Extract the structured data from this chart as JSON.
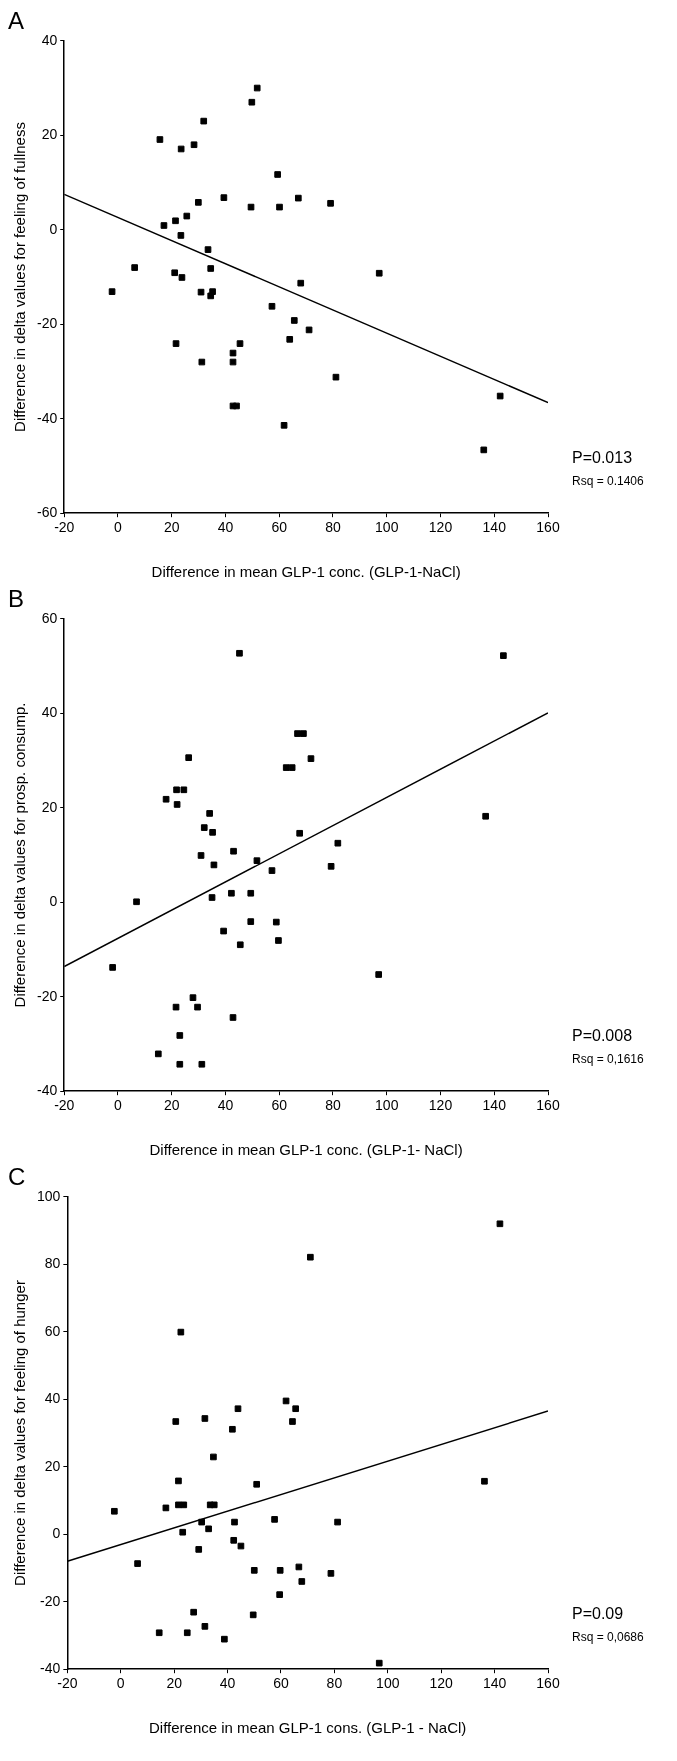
{
  "chart_data": [
    {
      "type": "scatter",
      "title": "A",
      "xlabel": "Difference in mean GLP-1 conc. (GLP-1-NaCl)",
      "ylabel": "Difference in delta values for feeling of fullness",
      "xlim": [
        -20,
        160
      ],
      "xticks": [
        -20,
        0,
        20,
        40,
        60,
        80,
        100,
        120,
        140,
        160
      ],
      "ylim": [
        -60,
        40
      ],
      "yticks": [
        -60,
        -40,
        -20,
        0,
        20,
        40
      ],
      "legend": false,
      "annotations": [
        "P=0.013",
        "Rsq = 0.1406"
      ],
      "series": [
        {
          "type": "scatter",
          "marker": "square",
          "color": "#000000",
          "x": [
            51.8,
            49.8,
            31.9,
            15.6,
            28.3,
            23.5,
            59.4,
            39.4,
            67.1,
            29.9,
            79.1,
            49.5,
            60.1,
            25.6,
            21.4,
            17.1,
            23.4,
            33.5,
            6.2,
            34.5,
            21.1,
            97.2,
            23.8,
            68.0,
            -2.2,
            30.9,
            35.2,
            34.5,
            57.3,
            65.6,
            71.1,
            63.9,
            21.6,
            45.4,
            42.8,
            42.8,
            31.2,
            42.8,
            44.1,
            61.8,
            81.1,
            142.2,
            136.1
          ],
          "values": [
            30,
            27,
            23,
            19.1,
            18,
            17.1,
            11.7,
            6.8,
            6.7,
            5.8,
            5.6,
            4.8,
            4.8,
            2.9,
            1.9,
            0.9,
            -1.2,
            -4.2,
            -8.0,
            -8.2,
            -9.1,
            -9.2,
            -10.1,
            -11.3,
            -13.1,
            -13.2,
            -13.1,
            -14,
            -16.2,
            -19.2,
            -21.2,
            -23.2,
            -24.1,
            -24.1,
            -26.1,
            -28,
            -28,
            -37.3,
            -37.3,
            -41.4,
            -31.2,
            -35.2,
            -46.6
          ]
        },
        {
          "type": "line",
          "marker": "none",
          "color": "#000000",
          "x": [
            -20,
            160
          ],
          "values": [
            7.5,
            -36.6
          ]
        }
      ]
    },
    {
      "type": "scatter",
      "title": "B",
      "xlabel": "Difference in mean GLP-1 conc. (GLP-1- NaCl)",
      "ylabel": "Difference in delta values for prosp. consump.",
      "xlim": [
        -20,
        160
      ],
      "xticks": [
        -20,
        0,
        20,
        40,
        60,
        80,
        100,
        120,
        140,
        160
      ],
      "ylim": [
        -40,
        60
      ],
      "yticks": [
        -40,
        -20,
        0,
        20,
        40,
        60
      ],
      "legend": false,
      "annotations": [
        "P=0.008",
        "Rsq = 0,1616"
      ],
      "series": [
        {
          "type": "scatter",
          "marker": "square",
          "color": "#000000",
          "x": [
            45.2,
            143.4,
            66.8,
            69.0,
            26.3,
            71.8,
            62.6,
            64.8,
            17.9,
            21.8,
            24.5,
            22.0,
            34.1,
            136.8,
            32.1,
            35.2,
            67.6,
            81.8,
            43.0,
            30.9,
            51.7,
            35.7,
            79.3,
            57.3,
            42.2,
            49.4,
            35.0,
            6.9,
            49.4,
            58.9,
            39.3,
            59.7,
            45.5,
            -2.0,
            97.0,
            27.9,
            21.6,
            29.6,
            42.8,
            23.0,
            15.0,
            23.0,
            31.2
          ],
          "values": [
            52.7,
            52.2,
            35.7,
            35.7,
            30.6,
            30.4,
            28.5,
            28.5,
            21.8,
            23.8,
            23.8,
            20.7,
            18.8,
            18.2,
            15.8,
            14.8,
            14.6,
            12.5,
            10.8,
            9.9,
            8.8,
            7.9,
            7.6,
            6.7,
            1.9,
            1.9,
            1.0,
            0.1,
            -4.1,
            -4.2,
            -6.1,
            -8.1,
            -9.0,
            -13.8,
            -15.3,
            -20.2,
            -22.2,
            -22.2,
            -24.4,
            -28.2,
            -32.1,
            -34.3,
            -34.3
          ]
        },
        {
          "type": "line",
          "marker": "none",
          "color": "#000000",
          "x": [
            -20,
            160
          ],
          "values": [
            -13.6,
            40.1
          ]
        }
      ]
    },
    {
      "type": "scatter",
      "title": "C",
      "xlabel": "Difference in mean GLP-1 cons. (GLP-1 - NaCl)",
      "ylabel": "Difference in delta values for feeling of hunger",
      "xlim": [
        -20,
        160
      ],
      "xticks": [
        -20,
        0,
        20,
        40,
        60,
        80,
        100,
        120,
        140,
        160
      ],
      "ylim": [
        -40,
        100
      ],
      "yticks": [
        -40,
        -20,
        0,
        20,
        40,
        60,
        80,
        100
      ],
      "legend": false,
      "annotations": [
        "P=0.09",
        "Rsq = 0,0686"
      ],
      "series": [
        {
          "type": "scatter",
          "marker": "square",
          "color": "#000000",
          "x": [
            142,
            71.0,
            22.5,
            61.9,
            65.5,
            43.9,
            31.5,
            20.6,
            64.3,
            41.8,
            34.7,
            21.6,
            50.9,
            136.2,
            16.9,
            -2.4,
            21.6,
            23.6,
            33.5,
            35.0,
            57.6,
            42.6,
            81.2,
            30.3,
            32.9,
            23.2,
            42.3,
            45.0,
            29.2,
            6.3,
            66.7,
            50.0,
            59.7,
            78.7,
            67.8,
            59.5,
            27.3,
            49.6,
            31.5,
            14.4,
            24.9,
            38.8,
            96.8
          ],
          "values": [
            92,
            82.1,
            59.9,
            39.5,
            37.2,
            37.2,
            34.3,
            33.4,
            33.4,
            31.1,
            22.9,
            15.8,
            14.8,
            15.7,
            7.8,
            6.8,
            8.7,
            8.7,
            8.7,
            8.7,
            4.4,
            3.6,
            3.6,
            3.6,
            1.6,
            0.6,
            -1.8,
            -3.5,
            -4.5,
            -8.7,
            -9.7,
            -10.7,
            -10.7,
            -11.6,
            -14.0,
            -17.9,
            -23.1,
            -23.9,
            -27.3,
            -29.2,
            -29.2,
            -31.1,
            -38.2
          ]
        },
        {
          "type": "line",
          "marker": "none",
          "color": "#000000",
          "x": [
            -20,
            160
          ],
          "values": [
            -8,
            36.5
          ]
        }
      ]
    }
  ]
}
